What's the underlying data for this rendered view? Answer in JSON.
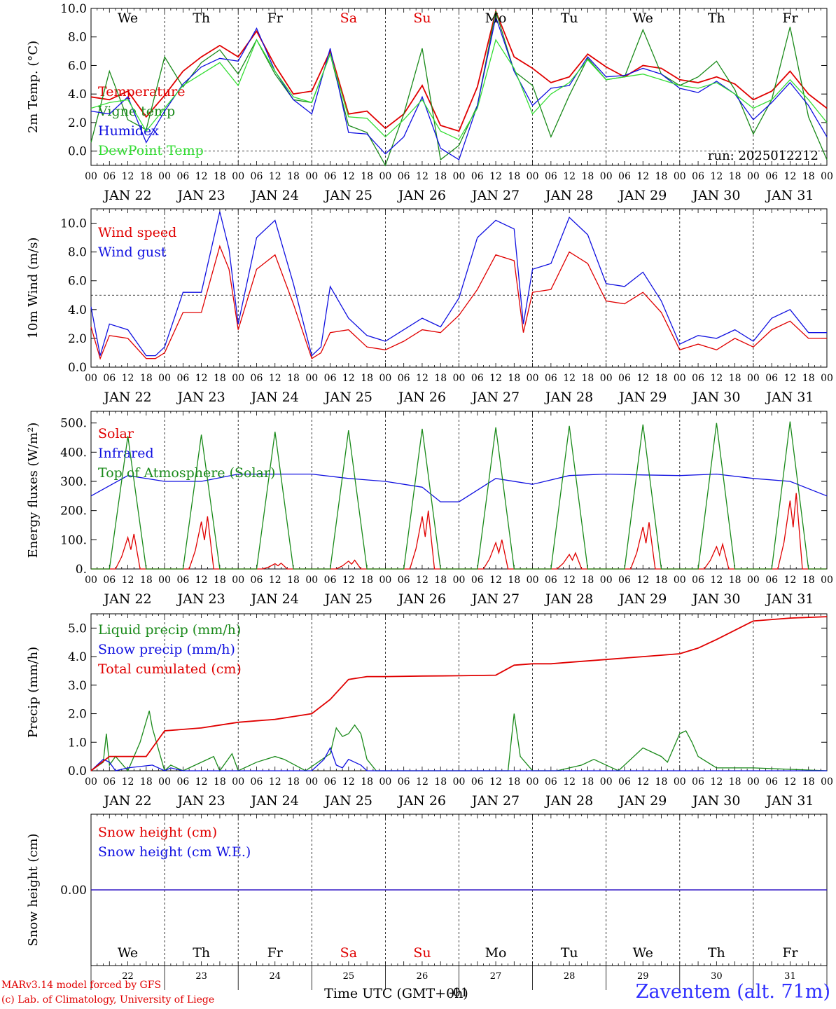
{
  "colors": {
    "red": "#e00000",
    "blue": "#1010e0",
    "green": "#1a8a1a",
    "light_green": "#33dd33",
    "axis": "#000000"
  },
  "day_names": [
    "We",
    "Th",
    "Fr",
    "Sa",
    "Su",
    "Mo",
    "Tu",
    "We",
    "Th",
    "Fr"
  ],
  "weekend_days": [
    "Sa",
    "Su"
  ],
  "date_labels": [
    "JAN 22",
    "JAN 23",
    "JAN 24",
    "JAN 25",
    "JAN 26",
    "JAN 27",
    "JAN 28",
    "JAN 29",
    "JAN 30",
    "JAN 31"
  ],
  "day_numbers": [
    "22",
    "23",
    "24",
    "25",
    "26",
    "27",
    "28",
    "29",
    "30",
    "31"
  ],
  "hour_labels": [
    "00",
    "06",
    "12",
    "18"
  ],
  "run_label": "run: 2025012212",
  "x_axis_title": "Time UTC (GMT+0h)",
  "x_axis_overlay": "-01",
  "footer": {
    "line1": "MARv3.14 model forced by GFS",
    "line2": "(c) Lab. of Climatology, University of Liege"
  },
  "location_title": "Zaventem (alt. 71m)",
  "chart_data": [
    {
      "type": "line",
      "ylabel": "2m Temp. (°C)",
      "ylim": [
        -1.0,
        10.0
      ],
      "yticks": [
        "0.0",
        "2.0",
        "4.0",
        "6.0",
        "8.0",
        "10.0"
      ],
      "ytick_values": [
        0,
        2,
        4,
        6,
        8,
        10
      ],
      "hline": 0,
      "x_unit": "hours since JAN 22 00 UTC",
      "series": [
        {
          "name": "Temperature",
          "color": "red",
          "x": [
            0,
            6,
            12,
            18,
            24,
            30,
            36,
            42,
            48,
            54,
            60,
            66,
            72,
            78,
            84,
            90,
            96,
            102,
            108,
            114,
            120,
            126,
            132,
            138,
            144,
            150,
            156,
            162,
            168,
            174,
            180,
            186,
            192,
            198,
            204,
            210,
            216,
            222,
            228,
            234,
            240
          ],
          "values": [
            3.8,
            3.6,
            4.2,
            2.4,
            3.9,
            5.6,
            6.6,
            7.4,
            6.6,
            8.4,
            6.0,
            4.0,
            4.2,
            7.0,
            2.6,
            2.8,
            1.6,
            2.6,
            4.6,
            1.8,
            1.4,
            4.5,
            9.8,
            6.6,
            5.8,
            4.8,
            5.2,
            6.8,
            5.9,
            5.2,
            6.0,
            5.8,
            5.0,
            4.8,
            5.2,
            4.7,
            3.6,
            4.2,
            5.6,
            4.0,
            3.0
          ]
        },
        {
          "name": "Vigne temp",
          "color": "green",
          "x": [
            0,
            6,
            12,
            18,
            24,
            30,
            36,
            42,
            48,
            54,
            60,
            66,
            72,
            78,
            84,
            90,
            96,
            102,
            108,
            114,
            120,
            126,
            132,
            138,
            144,
            150,
            156,
            162,
            168,
            174,
            180,
            186,
            192,
            198,
            204,
            210,
            216,
            222,
            228,
            234,
            240
          ],
          "values": [
            0.6,
            5.6,
            2.2,
            1.5,
            6.6,
            4.5,
            6.2,
            7.1,
            5.4,
            7.8,
            5.4,
            3.6,
            3.4,
            6.8,
            1.8,
            1.3,
            -1.0,
            2.6,
            7.2,
            -0.6,
            0.4,
            3.2,
            9.8,
            5.6,
            4.6,
            1.0,
            3.9,
            6.5,
            5.0,
            5.2,
            8.5,
            5.4,
            4.6,
            5.2,
            6.3,
            4.3,
            1.2,
            3.6,
            8.7,
            2.4,
            -0.6
          ]
        },
        {
          "name": "Humidex",
          "color": "blue",
          "x": [
            0,
            6,
            12,
            18,
            24,
            30,
            36,
            42,
            48,
            54,
            60,
            66,
            72,
            78,
            84,
            90,
            96,
            102,
            108,
            114,
            120,
            126,
            132,
            138,
            144,
            150,
            156,
            162,
            168,
            174,
            180,
            186,
            192,
            198,
            204,
            210,
            216,
            222,
            228,
            234,
            240
          ],
          "values": [
            2.8,
            2.6,
            3.8,
            0.6,
            2.8,
            4.7,
            5.9,
            6.5,
            6.3,
            8.6,
            5.6,
            3.6,
            2.6,
            7.2,
            1.3,
            1.2,
            -0.2,
            1.0,
            3.8,
            0.2,
            -0.6,
            3.2,
            9.4,
            5.6,
            3.2,
            4.4,
            4.6,
            6.6,
            5.2,
            5.3,
            5.8,
            5.4,
            4.4,
            4.1,
            4.9,
            4.0,
            2.2,
            3.4,
            4.8,
            3.2,
            1.0
          ]
        },
        {
          "name": "DewPoint Temp",
          "color": "light_green",
          "x": [
            0,
            6,
            12,
            18,
            24,
            30,
            36,
            42,
            48,
            54,
            60,
            66,
            72,
            78,
            84,
            90,
            96,
            102,
            108,
            114,
            120,
            126,
            132,
            138,
            144,
            150,
            156,
            162,
            168,
            174,
            180,
            186,
            192,
            198,
            204,
            210,
            216,
            222,
            228,
            234,
            240
          ],
          "values": [
            3.0,
            3.4,
            3.6,
            1.4,
            3.0,
            4.6,
            5.4,
            6.2,
            4.6,
            7.8,
            5.6,
            3.8,
            3.4,
            6.8,
            2.4,
            2.3,
            1.0,
            2.2,
            3.6,
            1.4,
            0.8,
            3.0,
            7.8,
            5.8,
            2.6,
            4.0,
            4.8,
            6.4,
            5.0,
            5.2,
            5.4,
            5.0,
            4.6,
            4.4,
            4.8,
            4.0,
            3.0,
            3.6,
            5.0,
            3.6,
            2.0
          ]
        }
      ]
    },
    {
      "type": "line",
      "ylabel": "10m Wind (m/s)",
      "ylim": [
        0.0,
        11.0
      ],
      "yticks": [
        "0.0",
        "2.0",
        "4.0",
        "6.0",
        "8.0",
        "10.0"
      ],
      "ytick_values": [
        0,
        2,
        4,
        6,
        8,
        10
      ],
      "hline": 5,
      "x_unit": "hours since JAN 22 00 UTC",
      "series": [
        {
          "name": "Wind speed",
          "color": "red",
          "x": [
            0,
            3,
            6,
            12,
            18,
            21,
            24,
            30,
            36,
            42,
            45,
            48,
            54,
            60,
            66,
            72,
            75,
            78,
            84,
            90,
            96,
            102,
            108,
            114,
            120,
            126,
            132,
            138,
            141,
            144,
            150,
            156,
            162,
            168,
            174,
            180,
            186,
            192,
            198,
            204,
            210,
            216,
            222,
            228,
            234,
            240
          ],
          "values": [
            2.8,
            0.6,
            2.2,
            2.0,
            0.6,
            0.6,
            1.0,
            3.8,
            3.8,
            8.4,
            6.8,
            2.6,
            6.8,
            7.8,
            4.4,
            0.6,
            1.0,
            2.4,
            2.6,
            1.4,
            1.2,
            1.8,
            2.6,
            2.4,
            3.6,
            5.4,
            7.8,
            7.4,
            2.4,
            5.2,
            5.4,
            8.0,
            7.2,
            4.6,
            4.4,
            5.2,
            3.8,
            1.2,
            1.6,
            1.2,
            2.0,
            1.4,
            2.6,
            3.2,
            2.0,
            2.0
          ]
        },
        {
          "name": "Wind gust",
          "color": "blue",
          "x": [
            0,
            3,
            6,
            12,
            18,
            21,
            24,
            30,
            36,
            42,
            45,
            48,
            54,
            60,
            66,
            72,
            75,
            78,
            84,
            90,
            96,
            102,
            108,
            114,
            120,
            126,
            132,
            138,
            141,
            144,
            150,
            156,
            162,
            168,
            174,
            180,
            186,
            192,
            198,
            204,
            210,
            216,
            222,
            228,
            234,
            240
          ],
          "values": [
            4.2,
            0.8,
            3.0,
            2.6,
            0.8,
            0.8,
            1.4,
            5.2,
            5.2,
            10.8,
            8.2,
            3.0,
            9.0,
            10.2,
            5.8,
            0.8,
            1.4,
            5.6,
            3.4,
            2.2,
            1.8,
            2.6,
            3.4,
            2.8,
            4.8,
            9.0,
            10.2,
            9.6,
            3.0,
            6.8,
            7.2,
            10.4,
            9.2,
            5.8,
            5.6,
            6.6,
            4.6,
            1.6,
            2.2,
            2.0,
            2.6,
            1.8,
            3.4,
            4.0,
            2.4,
            2.4
          ]
        }
      ]
    },
    {
      "type": "line",
      "ylabel": "Energy fluxes (W/m²)",
      "ylim": [
        0,
        540
      ],
      "yticks": [
        "0.",
        "100.",
        "200.",
        "300.",
        "400.",
        "500."
      ],
      "ytick_values": [
        0,
        100,
        200,
        300,
        400,
        500
      ],
      "x_unit": "hours since JAN 22 00 UTC",
      "series": [
        {
          "name": "Solar",
          "color": "red",
          "day_peaks": [
            120,
            180,
            20,
            30,
            200,
            100,
            55,
            160,
            85,
            260
          ]
        },
        {
          "name": "Infrared",
          "color": "blue",
          "x": [
            0,
            12,
            24,
            36,
            48,
            60,
            72,
            84,
            96,
            108,
            114,
            120,
            132,
            144,
            156,
            168,
            180,
            192,
            204,
            216,
            228,
            240
          ],
          "values": [
            250,
            320,
            300,
            300,
            325,
            325,
            325,
            310,
            300,
            280,
            230,
            230,
            310,
            290,
            320,
            325,
            322,
            320,
            325,
            310,
            300,
            250
          ]
        },
        {
          "name": "Top of Atmosphere (Solar)",
          "color": "green",
          "day_peaks": [
            455,
            460,
            470,
            475,
            480,
            485,
            490,
            495,
            500,
            505
          ]
        }
      ]
    },
    {
      "type": "line",
      "ylabel": "Precip (mm/h)",
      "ylim": [
        0.0,
        5.5
      ],
      "yticks": [
        "0.0",
        "1.0",
        "2.0",
        "3.0",
        "4.0",
        "5.0"
      ],
      "ytick_values": [
        0,
        1,
        2,
        3,
        4,
        5
      ],
      "x_unit": "hours since JAN 22 00 UTC",
      "series": [
        {
          "name": "Liquid precip (mm/h)",
          "color": "green",
          "x": [
            0,
            4,
            5,
            6,
            8,
            12,
            16,
            19,
            20,
            24,
            26,
            30,
            40,
            42,
            46,
            48,
            54,
            60,
            63,
            70,
            78,
            80,
            82,
            84,
            86,
            88,
            90,
            93,
            100,
            120,
            136,
            138,
            140,
            144,
            152,
            160,
            164,
            166,
            172,
            180,
            186,
            188,
            192,
            194,
            196,
            198,
            204,
            216,
            240
          ],
          "values": [
            0,
            0.3,
            1.3,
            0.2,
            0.5,
            0,
            1.0,
            2.1,
            1.5,
            0,
            0.2,
            0,
            0.5,
            0,
            0.6,
            0,
            0.3,
            0.5,
            0.4,
            0,
            0.6,
            1.5,
            1.2,
            1.3,
            1.6,
            1.3,
            0.4,
            0,
            0,
            0,
            0,
            2.0,
            0.5,
            0,
            0,
            0.2,
            0.4,
            0.3,
            0,
            0.8,
            0.5,
            0.3,
            1.3,
            1.4,
            1.0,
            0.5,
            0.1,
            0.1,
            0
          ]
        },
        {
          "name": "Snow precip (mm/h)",
          "color": "blue",
          "x": [
            0,
            4,
            6,
            8,
            12,
            20,
            24,
            26,
            30,
            72,
            76,
            78,
            80,
            82,
            84,
            88,
            90,
            96,
            240
          ],
          "values": [
            0,
            0.4,
            0.3,
            0,
            0.1,
            0.2,
            0,
            0.1,
            0,
            0,
            0.4,
            0.8,
            0.2,
            0.1,
            0.4,
            0.2,
            0,
            0,
            0
          ]
        },
        {
          "name": "Total cumulated (cm)",
          "color": "red",
          "x": [
            0,
            6,
            12,
            18,
            24,
            36,
            42,
            48,
            54,
            60,
            66,
            72,
            78,
            84,
            90,
            96,
            108,
            120,
            132,
            138,
            144,
            150,
            156,
            168,
            180,
            192,
            198,
            204,
            216,
            228,
            240
          ],
          "values": [
            0,
            0.5,
            0.5,
            0.5,
            1.4,
            1.5,
            1.6,
            1.7,
            1.75,
            1.8,
            1.9,
            2.0,
            2.5,
            3.2,
            3.3,
            3.3,
            3.32,
            3.33,
            3.35,
            3.7,
            3.75,
            3.75,
            3.8,
            3.9,
            4.0,
            4.1,
            4.3,
            4.6,
            5.25,
            5.35,
            5.4
          ]
        }
      ]
    },
    {
      "type": "line",
      "ylabel": "Snow height (cm)",
      "ylim": [
        -1,
        1
      ],
      "yticks": [
        "0.00"
      ],
      "ytick_values": [
        0
      ],
      "series": [
        {
          "name": "Snow height (cm)",
          "color": "red",
          "x": [
            0,
            240
          ],
          "values": [
            0,
            0
          ]
        },
        {
          "name": "Snow height (cm W.E.)",
          "color": "blue",
          "x": [
            0,
            240
          ],
          "values": [
            0,
            0
          ]
        }
      ]
    }
  ]
}
